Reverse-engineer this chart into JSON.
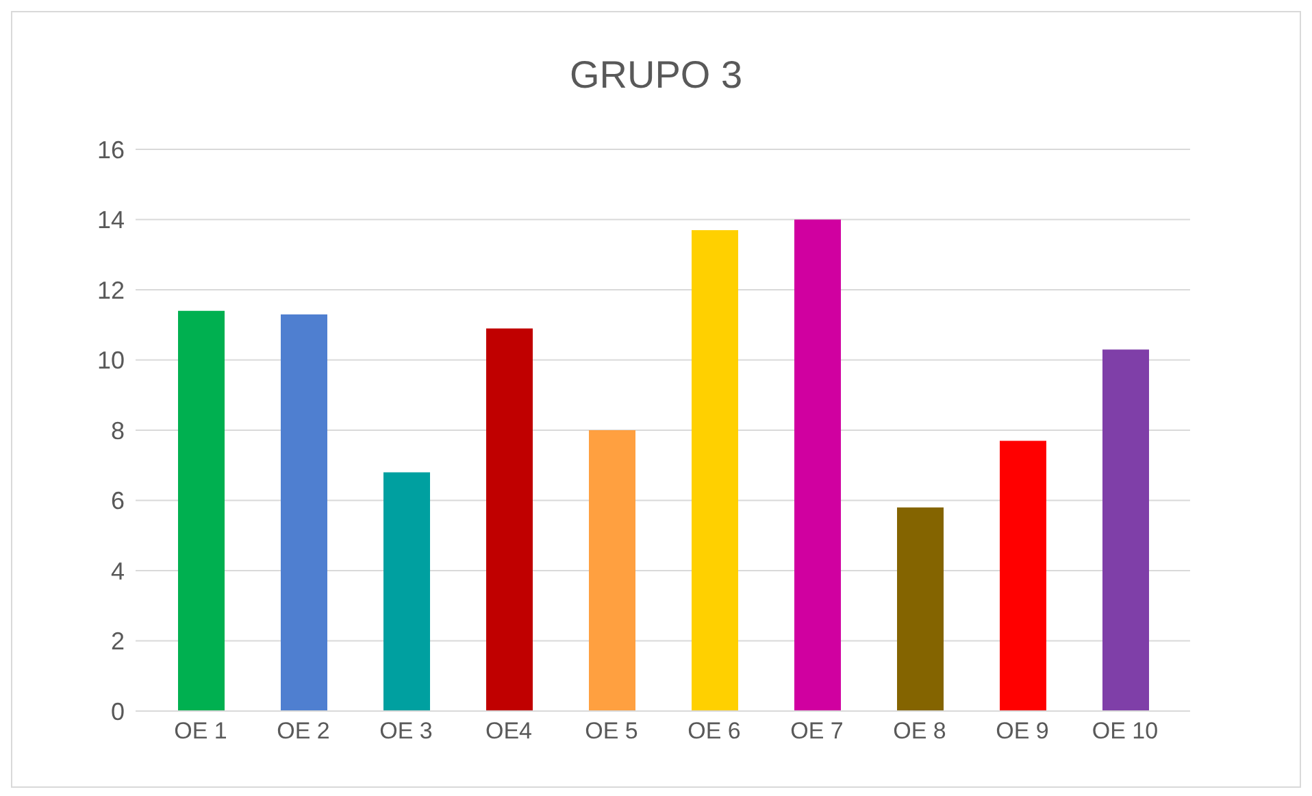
{
  "chart_data": {
    "type": "bar",
    "title": "GRUPO 3",
    "categories": [
      "OE 1",
      "OE 2",
      "OE 3",
      "OE4",
      "OE 5",
      "OE 6",
      "OE 7",
      "OE 8",
      "OE 9",
      "OE 10"
    ],
    "values": [
      11.4,
      11.3,
      6.8,
      10.9,
      8.0,
      13.7,
      14.0,
      5.8,
      7.7,
      10.3
    ],
    "colors": [
      "#00b050",
      "#4f7fd0",
      "#00a0a0",
      "#c00000",
      "#ffa040",
      "#ffd000",
      "#d000a0",
      "#846400",
      "#ff0000",
      "#7f3fa8"
    ],
    "ylim": [
      0,
      16
    ],
    "yticks": [
      0,
      2,
      4,
      6,
      8,
      10,
      12,
      14,
      16
    ],
    "grid": "y"
  }
}
